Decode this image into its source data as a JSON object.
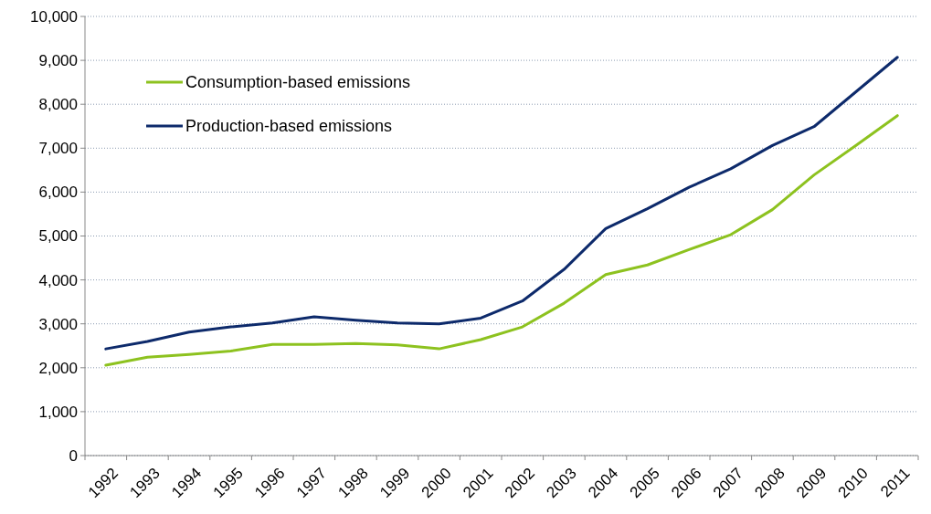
{
  "chart_data": {
    "type": "line",
    "categories": [
      "1992",
      "1993",
      "1994",
      "1995",
      "1996",
      "1997",
      "1998",
      "1999",
      "2000",
      "2001",
      "2002",
      "2003",
      "2004",
      "2005",
      "2006",
      "2007",
      "2008",
      "2009",
      "2010",
      "2011"
    ],
    "series": [
      {
        "name": "Consumption-based emissions",
        "color": "#8dc21f",
        "values": [
          2060,
          2240,
          2300,
          2380,
          2530,
          2530,
          2550,
          2520,
          2430,
          2640,
          2930,
          3470,
          4120,
          4340,
          4690,
          5030,
          5600,
          6390,
          7060,
          7740
        ]
      },
      {
        "name": "Production-based emissions",
        "color": "#0d2a6b",
        "values": [
          2430,
          2600,
          2810,
          2930,
          3020,
          3160,
          3080,
          3020,
          3000,
          3130,
          3520,
          4240,
          5170,
          5620,
          6110,
          6530,
          7060,
          7490,
          8280,
          9070
        ]
      }
    ],
    "ylim": [
      0,
      10000
    ],
    "yticks": [
      {
        "value": 0,
        "label": "0"
      },
      {
        "value": 1000,
        "label": "1,000"
      },
      {
        "value": 2000,
        "label": "2,000"
      },
      {
        "value": 3000,
        "label": "3,000"
      },
      {
        "value": 4000,
        "label": "4,000"
      },
      {
        "value": 5000,
        "label": "5,000"
      },
      {
        "value": 6000,
        "label": "6,000"
      },
      {
        "value": 7000,
        "label": "7,000"
      },
      {
        "value": 8000,
        "label": "8,000"
      },
      {
        "value": 9000,
        "label": "9,000"
      },
      {
        "value": 10000,
        "label": "10,000"
      }
    ],
    "grid": "y",
    "legend": "top left",
    "marker": "none",
    "line_style": "solid"
  }
}
